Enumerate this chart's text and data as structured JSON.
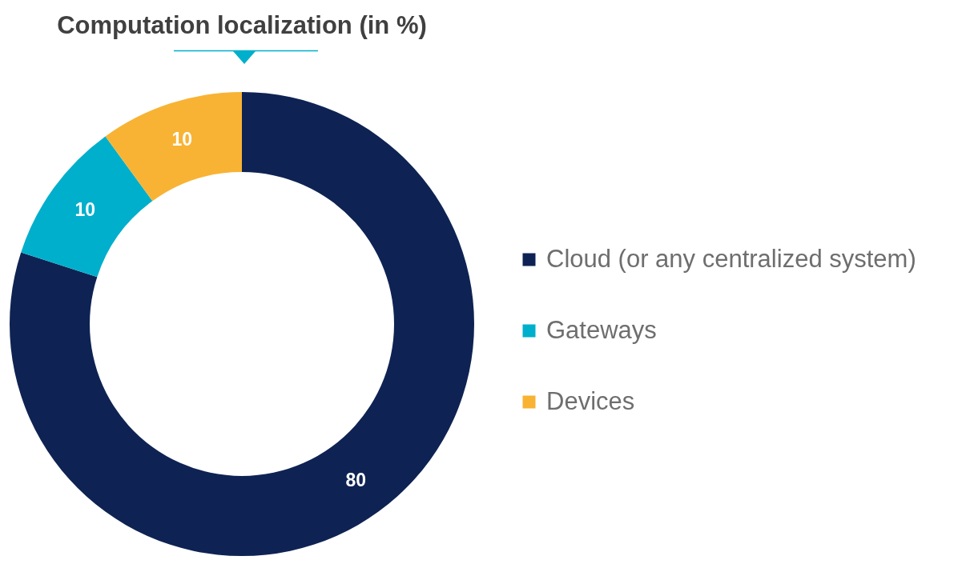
{
  "chart_data": {
    "type": "donut",
    "title": "Computation localization (in %)",
    "categories": [
      "Cloud (or any centralized system)",
      "Gateways",
      "Devices"
    ],
    "values": [
      80,
      10,
      10
    ],
    "colors": [
      "#0e2353",
      "#00afcb",
      "#f8b334"
    ],
    "data_labels": true,
    "legend": "right"
  }
}
